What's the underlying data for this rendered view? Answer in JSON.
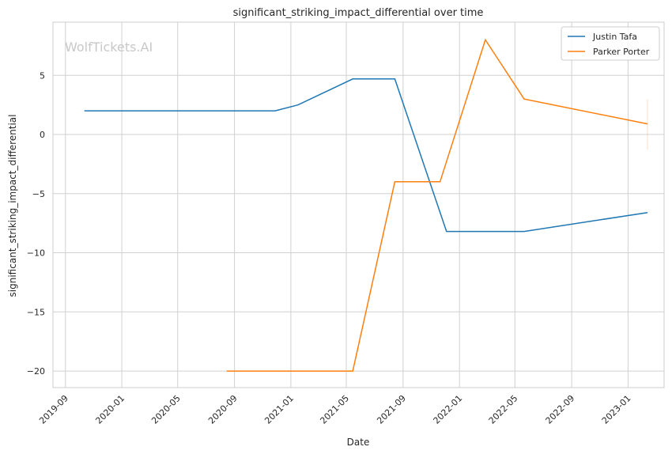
{
  "chart_data": {
    "type": "line",
    "title": "significant_striking_impact_differential over time",
    "xlabel": "Date",
    "ylabel": "significant_striking_impact_differential",
    "watermark": "WolfTickets.AI",
    "x_ticks": [
      "2019-09",
      "2020-01",
      "2020-05",
      "2020-09",
      "2021-01",
      "2021-05",
      "2021-09",
      "2022-01",
      "2022-05",
      "2022-09",
      "2023-01"
    ],
    "y_ticks": [
      5,
      0,
      -5,
      -10,
      -15,
      -20
    ],
    "y_tick_labels": [
      "5",
      "0",
      "−5",
      "−10",
      "−15",
      "−20"
    ],
    "xlim": [
      "2019-08-05",
      "2023-03-20"
    ],
    "ylim": [
      -21.4,
      9.5
    ],
    "grid": true,
    "legend_position": "top-right",
    "series": [
      {
        "name": "Justin Tafa",
        "color": "#1f77b4",
        "points": [
          [
            "2019-10-12",
            2.0
          ],
          [
            "2020-11-28",
            2.0
          ],
          [
            "2021-01-16",
            2.5
          ],
          [
            "2021-05-15",
            4.7
          ],
          [
            "2021-08-14",
            4.7
          ],
          [
            "2021-12-04",
            -8.2
          ],
          [
            "2022-05-21",
            -8.2
          ],
          [
            "2023-02-12",
            -6.6
          ]
        ]
      },
      {
        "name": "Parker Porter",
        "color": "#ff7f0e",
        "points": [
          [
            "2020-08-15",
            -20.0
          ],
          [
            "2021-05-15",
            -20.0
          ],
          [
            "2021-08-14",
            -4.0
          ],
          [
            "2021-11-20",
            -4.0
          ],
          [
            "2022-02-26",
            8.0
          ],
          [
            "2022-05-21",
            3.0
          ],
          [
            "2023-02-12",
            0.9
          ]
        ],
        "error_band": {
          "x": "2023-02-12",
          "low": -1.3,
          "high": 3.0
        }
      }
    ]
  }
}
